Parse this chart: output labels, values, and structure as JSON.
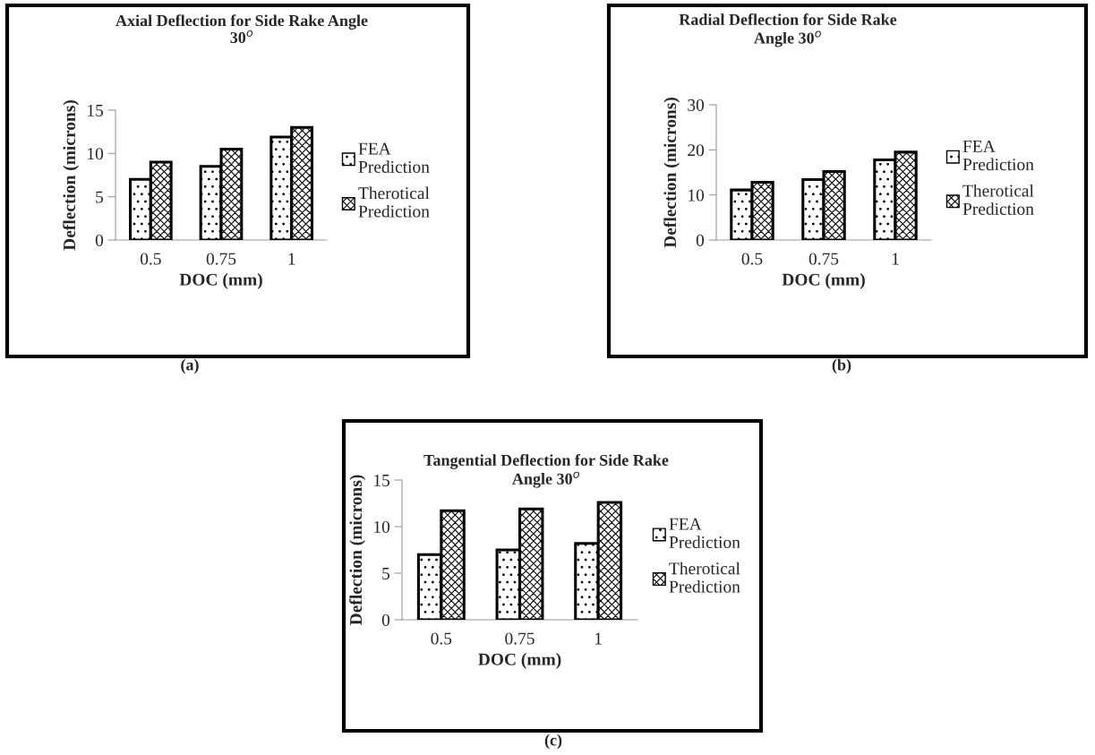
{
  "chart_data": [
    {
      "type": "bar",
      "title": "Axial Deflection for Side Rake Angle\n30$^{o}$",
      "xlabel": "DOC (mm)",
      "ylabel": "Deflection (microns)",
      "categories": [
        "0.5",
        "0.75",
        "1"
      ],
      "series": [
        {
          "name": "FEA\nPrediction",
          "color": "#000000",
          "values": [
            7.0,
            8.5,
            11.9
          ]
        },
        {
          "name": "Therotical\nPrediction",
          "color": "#000000",
          "values": [
            9.0,
            10.5,
            13.0
          ]
        }
      ],
      "ylim": [
        0,
        15
      ],
      "yticks": [
        0,
        5,
        10,
        15
      ],
      "legend": "right",
      "grid": false,
      "annotations": [
        "(a)"
      ]
    },
    {
      "type": "bar",
      "title": "Radial Deflection for Side Rake\nAngle 30$^{o}$",
      "xlabel": "DOC (mm)",
      "ylabel": "Deflection (microns)",
      "categories": [
        "0.5",
        "0.75",
        "1"
      ],
      "series": [
        {
          "name": "FEA\nPrediction",
          "color": "#000000",
          "values": [
            11.1,
            13.4,
            17.8
          ]
        },
        {
          "name": "Therotical\nPrediction",
          "color": "#000000",
          "values": [
            12.8,
            15.2,
            19.5
          ]
        }
      ],
      "ylim": [
        0,
        30
      ],
      "yticks": [
        0,
        10,
        20,
        30
      ],
      "legend": "right",
      "grid": false,
      "annotations": [
        "(b)"
      ]
    },
    {
      "type": "bar",
      "title": "Tangential Deflection for Side Rake\nAngle 30$^{o}$",
      "xlabel": "DOC (mm)",
      "ylabel": "Deflection (microns)",
      "categories": [
        "0.5",
        "0.75",
        "1"
      ],
      "series": [
        {
          "name": "FEA\nPrediction",
          "color": "#000000",
          "values": [
            7.0,
            7.5,
            8.2
          ]
        },
        {
          "name": "Therotical\nPrediction",
          "color": "#000000",
          "values": [
            11.7,
            11.9,
            12.6
          ]
        }
      ],
      "ylim": [
        0,
        15
      ],
      "yticks": [
        0,
        5,
        10,
        15
      ],
      "legend": "right",
      "grid": false,
      "annotations": [
        "(c)"
      ]
    }
  ]
}
